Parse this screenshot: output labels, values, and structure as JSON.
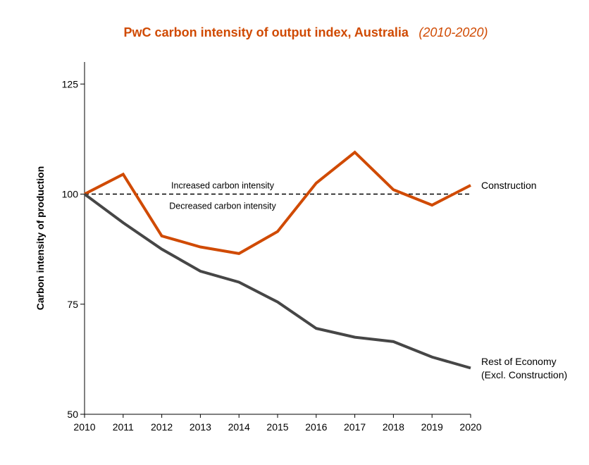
{
  "chart_data": {
    "type": "line",
    "title": "PwC carbon intensity of output index, Australia",
    "subtitle": "(2010-2020)",
    "xlabel": "",
    "ylabel": "Carbon intensity of production",
    "x": [
      2010,
      2011,
      2012,
      2013,
      2014,
      2015,
      2016,
      2017,
      2018,
      2019,
      2020
    ],
    "ylim": [
      50,
      130
    ],
    "yticks": [
      50,
      75,
      100,
      125
    ],
    "grid": false,
    "series": [
      {
        "name": "Construction",
        "name_lines": [
          "Construction"
        ],
        "color": "#d04a02",
        "values": [
          100,
          104.5,
          90.5,
          88,
          86.5,
          91.5,
          102.5,
          109.5,
          101,
          97.5,
          102
        ]
      },
      {
        "name": "Rest of Economy (Excl. Construction)",
        "name_lines": [
          "Rest of Economy",
          "(Excl. Construction)"
        ],
        "color": "#464646",
        "values": [
          100,
          93.5,
          87.5,
          82.5,
          80,
          75.5,
          69.5,
          67.5,
          66.5,
          63,
          60.5
        ]
      }
    ],
    "reference_line": {
      "value": 100,
      "style": "dashed"
    },
    "annotations": {
      "above": "Increased carbon intensity",
      "below": "Decreased carbon intensity"
    }
  },
  "colors": {
    "title": "#d04a02",
    "axis": "#000000",
    "reference": "#000000"
  }
}
